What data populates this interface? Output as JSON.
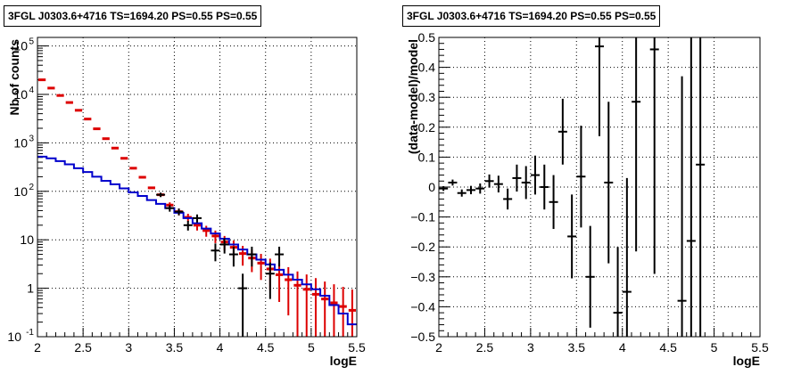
{
  "panels": [
    {
      "title": "3FGL J0303.6+4716 TS=1694.20 PS=0.55 PS=0.55"
    },
    {
      "title": "3FGL J0303.6+4716 TS=1694.20 PS=0.55 PS=0.55"
    }
  ],
  "chart_data": [
    {
      "type": "scatter",
      "title": "3FGL J0303.6+4716 TS=1694.20 PS=0.55 PS=0.55",
      "xlabel": "logE",
      "ylabel": "Nb of counts",
      "xlim": [
        2,
        5.5
      ],
      "ylim": [
        0.1,
        150000
      ],
      "yscale": "log",
      "grid": true,
      "x_ticks": [
        "2",
        "2.5",
        "3",
        "3.5",
        "4",
        "4.5",
        "5",
        "5.5"
      ],
      "y_ticks": [
        "10^-1",
        "1",
        "10",
        "10^2",
        "10^3",
        "10^4",
        "10^5"
      ],
      "bin_edges": [
        2.0,
        2.1,
        2.2,
        2.3,
        2.4,
        2.5,
        2.6,
        2.7,
        2.8,
        2.9,
        3.0,
        3.1,
        3.2,
        3.3,
        3.4,
        3.5,
        3.6,
        3.7,
        3.8,
        3.9,
        4.0,
        4.1,
        4.2,
        4.3,
        4.4,
        4.5,
        4.6,
        4.7,
        4.8,
        4.9,
        5.0,
        5.1,
        5.2,
        5.3,
        5.4,
        5.5
      ],
      "model_total_color": "#dd0000",
      "model_total": [
        20000,
        13500,
        9500,
        6800,
        4700,
        3100,
        1950,
        1220,
        780,
        480,
        300,
        195,
        118,
        85,
        52,
        38,
        29,
        20,
        15.5,
        12,
        9,
        7,
        5.2,
        4.2,
        3.3,
        2.5,
        1.9,
        1.5,
        1.15,
        0.95,
        0.75,
        0.6,
        0.5,
        0.42,
        0.35
      ],
      "model_source_color": "#0000cc",
      "model_source": [
        520,
        480,
        420,
        360,
        300,
        250,
        200,
        165,
        140,
        115,
        95,
        80,
        66,
        55,
        45,
        36,
        28,
        22,
        17,
        13.5,
        10.5,
        8,
        6.3,
        5,
        3.9,
        3.1,
        2.4,
        1.9,
        1.5,
        1.2,
        0.95,
        0.7,
        0.45,
        0.3,
        0.18
      ],
      "data_points": [
        {
          "x": 3.35,
          "y": 85,
          "err": 9
        },
        {
          "x": 3.45,
          "y": 45,
          "err": 7
        },
        {
          "x": 3.55,
          "y": 38,
          "err": 6
        },
        {
          "x": 3.65,
          "y": 20,
          "err": 4.5
        },
        {
          "x": 3.75,
          "y": 28,
          "err": 5.3
        },
        {
          "x": 3.95,
          "y": 6,
          "err": 2.4
        },
        {
          "x": 4.05,
          "y": 8,
          "err": 2.8
        },
        {
          "x": 4.15,
          "y": 5,
          "err": 2.2
        },
        {
          "x": 4.25,
          "y": 1,
          "err": 1
        },
        {
          "x": 4.35,
          "y": 5,
          "err": 2.2
        },
        {
          "x": 4.55,
          "y": 2,
          "err": 1.4
        },
        {
          "x": 4.65,
          "y": 5,
          "err": 2.2
        }
      ]
    },
    {
      "type": "scatter",
      "title": "3FGL J0303.6+4716 TS=1694.20 PS=0.55 PS=0.55",
      "xlabel": "logE",
      "ylabel": "(data-model)/model",
      "xlim": [
        2,
        5.5
      ],
      "ylim": [
        -0.5,
        0.5
      ],
      "grid": true,
      "x_ticks": [
        "2",
        "2.5",
        "3",
        "3.5",
        "4",
        "4.5",
        "5",
        "5.5"
      ],
      "y_ticks": [
        "−0.5",
        "−0.4",
        "−0.3",
        "−0.2",
        "−0.1",
        "0",
        "0.1",
        "0.2",
        "0.3",
        "0.4",
        "0.5"
      ],
      "points": [
        {
          "x": 2.05,
          "y": -0.005,
          "err": 0.008
        },
        {
          "x": 2.15,
          "y": 0.015,
          "err": 0.01
        },
        {
          "x": 2.25,
          "y": -0.02,
          "err": 0.012
        },
        {
          "x": 2.35,
          "y": -0.01,
          "err": 0.014
        },
        {
          "x": 2.45,
          "y": -0.005,
          "err": 0.017
        },
        {
          "x": 2.55,
          "y": 0.02,
          "err": 0.022
        },
        {
          "x": 2.65,
          "y": 0.01,
          "err": 0.028
        },
        {
          "x": 2.75,
          "y": -0.04,
          "err": 0.035
        },
        {
          "x": 2.85,
          "y": 0.03,
          "err": 0.045
        },
        {
          "x": 2.95,
          "y": 0.015,
          "err": 0.055
        },
        {
          "x": 3.05,
          "y": 0.04,
          "err": 0.065
        },
        {
          "x": 3.15,
          "y": 0.0,
          "err": 0.075
        },
        {
          "x": 3.25,
          "y": -0.05,
          "err": 0.09
        },
        {
          "x": 3.35,
          "y": 0.185,
          "err": 0.11
        },
        {
          "x": 3.45,
          "y": -0.165,
          "err": 0.14
        },
        {
          "x": 3.55,
          "y": 0.035,
          "err": 0.17
        },
        {
          "x": 3.65,
          "y": -0.3,
          "err": 0.17
        },
        {
          "x": 3.75,
          "y": 0.47,
          "err": 0.3
        },
        {
          "x": 3.85,
          "y": 0.015,
          "err": 0.27
        },
        {
          "x": 3.95,
          "y": -0.42,
          "err": 0.22
        },
        {
          "x": 4.05,
          "y": -0.35,
          "err": 0.38
        },
        {
          "x": 4.15,
          "y": 0.285,
          "err": 0.5
        },
        {
          "x": 4.35,
          "y": 0.46,
          "err": 0.75
        },
        {
          "x": 4.65,
          "y": -0.38,
          "err": 0.75
        },
        {
          "x": 4.75,
          "y": -0.18,
          "err": 0.85
        },
        {
          "x": 4.85,
          "y": 0.075,
          "err": 0.9
        }
      ]
    }
  ]
}
